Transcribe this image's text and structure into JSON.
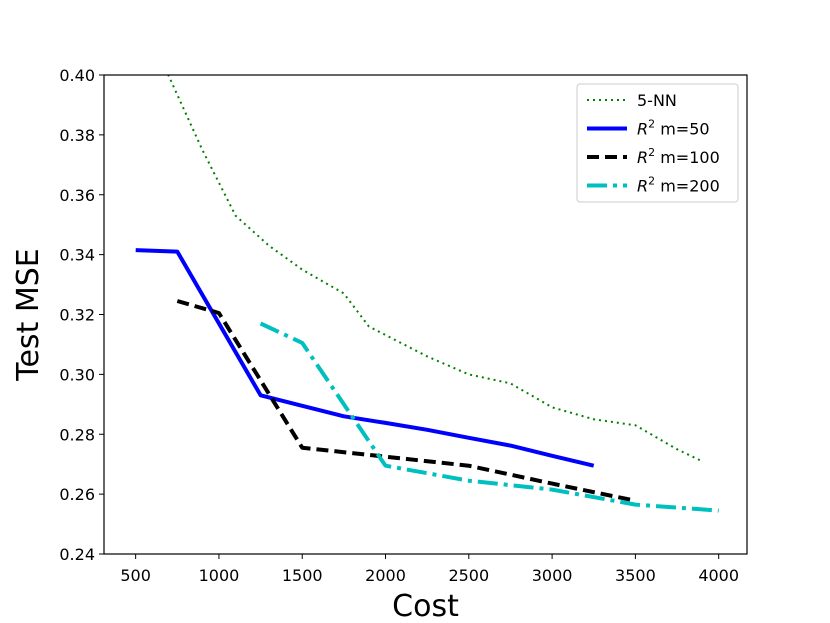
{
  "chart_data": {
    "type": "line",
    "title": "",
    "xlabel": "Cost",
    "ylabel": "Test MSE",
    "xlim": [
      310,
      4170
    ],
    "ylim": [
      0.24,
      0.4
    ],
    "xticks": [
      500,
      1000,
      1500,
      2000,
      2500,
      3000,
      3500,
      4000
    ],
    "xtick_labels": [
      "500",
      "1000",
      "1500",
      "2000",
      "2500",
      "3000",
      "3500",
      "4000"
    ],
    "yticks": [
      0.24,
      0.26,
      0.28,
      0.3,
      0.32,
      0.34,
      0.36,
      0.38,
      0.4
    ],
    "ytick_labels": [
      "0.24",
      "0.26",
      "0.28",
      "0.30",
      "0.32",
      "0.34",
      "0.36",
      "0.38",
      "0.40"
    ],
    "grid": false,
    "legend_position": "top-right",
    "series": [
      {
        "name": "5-NN",
        "label_main": "5-NN",
        "label_sup": "",
        "label_rest": "",
        "color": "#008000",
        "style": "dotted",
        "x": [
          680,
          900,
          1100,
          1300,
          1500,
          1750,
          1900,
          2250,
          2500,
          2750,
          3000,
          3250,
          3500,
          3750,
          3900
        ],
        "y": [
          0.402,
          0.375,
          0.353,
          0.343,
          0.335,
          0.327,
          0.316,
          0.306,
          0.3,
          0.297,
          0.289,
          0.285,
          0.283,
          0.275,
          0.271
        ]
      },
      {
        "name": "R^2 m=50",
        "label_main": "R",
        "label_sup": "2",
        "label_rest": " m=50",
        "color": "#0000ff",
        "style": "solid",
        "x": [
          500,
          750,
          1250,
          1500,
          1750,
          2000,
          2250,
          2500,
          2750,
          3000,
          3250
        ],
        "y": [
          0.3415,
          0.341,
          0.293,
          0.2895,
          0.286,
          0.2838,
          0.2815,
          0.2788,
          0.2762,
          0.2728,
          0.2695
        ]
      },
      {
        "name": "R^2 m=100",
        "label_main": "R",
        "label_sup": "2",
        "label_rest": " m=100",
        "color": "#000000",
        "style": "dashed",
        "x": [
          750,
          1000,
          1250,
          1500,
          2000,
          2500,
          3000,
          3500
        ],
        "y": [
          0.3245,
          0.3205,
          0.298,
          0.2755,
          0.2725,
          0.2695,
          0.2635,
          0.2578
        ]
      },
      {
        "name": "R^2 m=200",
        "label_main": "R",
        "label_sup": "2",
        "label_rest": " m=200",
        "color": "#00bfbf",
        "style": "dashdot",
        "x": [
          1250,
          1500,
          2000,
          2500,
          3000,
          3500,
          4000
        ],
        "y": [
          0.317,
          0.3105,
          0.2695,
          0.2645,
          0.2615,
          0.2565,
          0.2545
        ]
      }
    ]
  }
}
